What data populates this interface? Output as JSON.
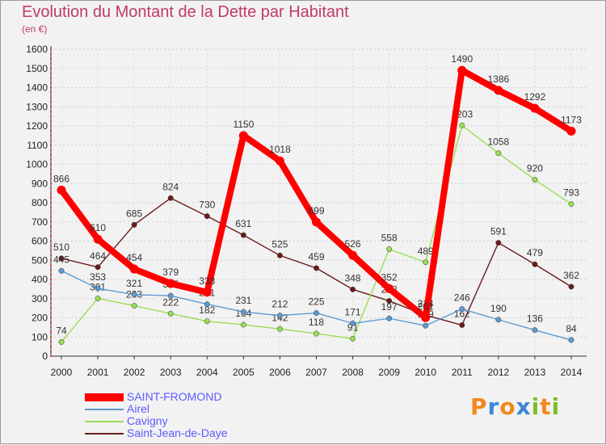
{
  "chart_data": {
    "type": "line",
    "title": "Evolution du Montant de la Dette par Habitant",
    "ylabel": "(en €)",
    "xlabel": "",
    "ylim": [
      0,
      1600
    ],
    "yticks": [
      0,
      100,
      200,
      300,
      400,
      500,
      600,
      700,
      800,
      900,
      1000,
      1100,
      1200,
      1300,
      1400,
      1500,
      1600
    ],
    "categories": [
      "2000",
      "2001",
      "2002",
      "2003",
      "2004",
      "2005",
      "2006",
      "2007",
      "2008",
      "2009",
      "2010",
      "2011",
      "2012",
      "2013",
      "2014"
    ],
    "series": [
      {
        "name": "Saint-Jean-de-Daye",
        "color": "#6b1a1a",
        "values": [
          510,
          464,
          685,
          824,
          730,
          631,
          525,
          459,
          348,
          288,
          214,
          162,
          591,
          479,
          362
        ],
        "labels": [
          "510",
          "464",
          "685",
          "824",
          "730",
          "631",
          "525",
          "459",
          "348",
          "288",
          "214",
          "162",
          "591",
          "479",
          "362"
        ]
      },
      {
        "name": "Cavigny",
        "color": "#99dd55",
        "values": [
          74,
          301,
          263,
          222,
          182,
          164,
          142,
          118,
          91,
          558,
          489,
          1203,
          1058,
          920,
          793
        ],
        "labels": [
          "74",
          "301",
          "263",
          "222",
          "182",
          "164",
          "142",
          "118",
          "91",
          "558",
          "489",
          "1203",
          "1058",
          "920",
          "793"
        ]
      },
      {
        "name": "Airel",
        "color": "#5d9bd0",
        "values": [
          445,
          353,
          321,
          315,
          271,
          231,
          212,
          225,
          171,
          197,
          159,
          246,
          190,
          136,
          84
        ],
        "labels": [
          "445",
          "353",
          "321",
          "315",
          "271",
          "231",
          "212",
          "225",
          "171",
          "197",
          "159",
          "246",
          "190",
          "136",
          "84"
        ]
      },
      {
        "name": "SAINT-FROMOND",
        "color": "#ff0000",
        "values": [
          866,
          610,
          454,
          379,
          333,
          1150,
          1018,
          699,
          526,
          352,
          201,
          1490,
          1386,
          1292,
          1173
        ],
        "labels": [
          "866",
          "610",
          "454",
          "379",
          "333",
          "1150",
          "1018",
          "699",
          "526",
          "352",
          "201",
          "1490",
          "1386",
          "1292",
          "1173"
        ]
      }
    ],
    "legend": [
      {
        "name": "SAINT-FROMOND",
        "color": "#ff0000"
      },
      {
        "name": "Airel",
        "color": "#5d9bd0"
      },
      {
        "name": "Cavigny",
        "color": "#99dd55"
      },
      {
        "name": "Saint-Jean-de-Daye",
        "color": "#6b1a1a"
      }
    ]
  },
  "brand": {
    "letters": [
      "P",
      "r",
      "o",
      "x",
      "i",
      "t",
      "i"
    ],
    "colors": [
      "#f08a1c",
      "#3a86d8",
      "#f08a1c",
      "#3a86d8",
      "#7bbf2a",
      "#f08a1c",
      "#7bbf2a"
    ]
  }
}
